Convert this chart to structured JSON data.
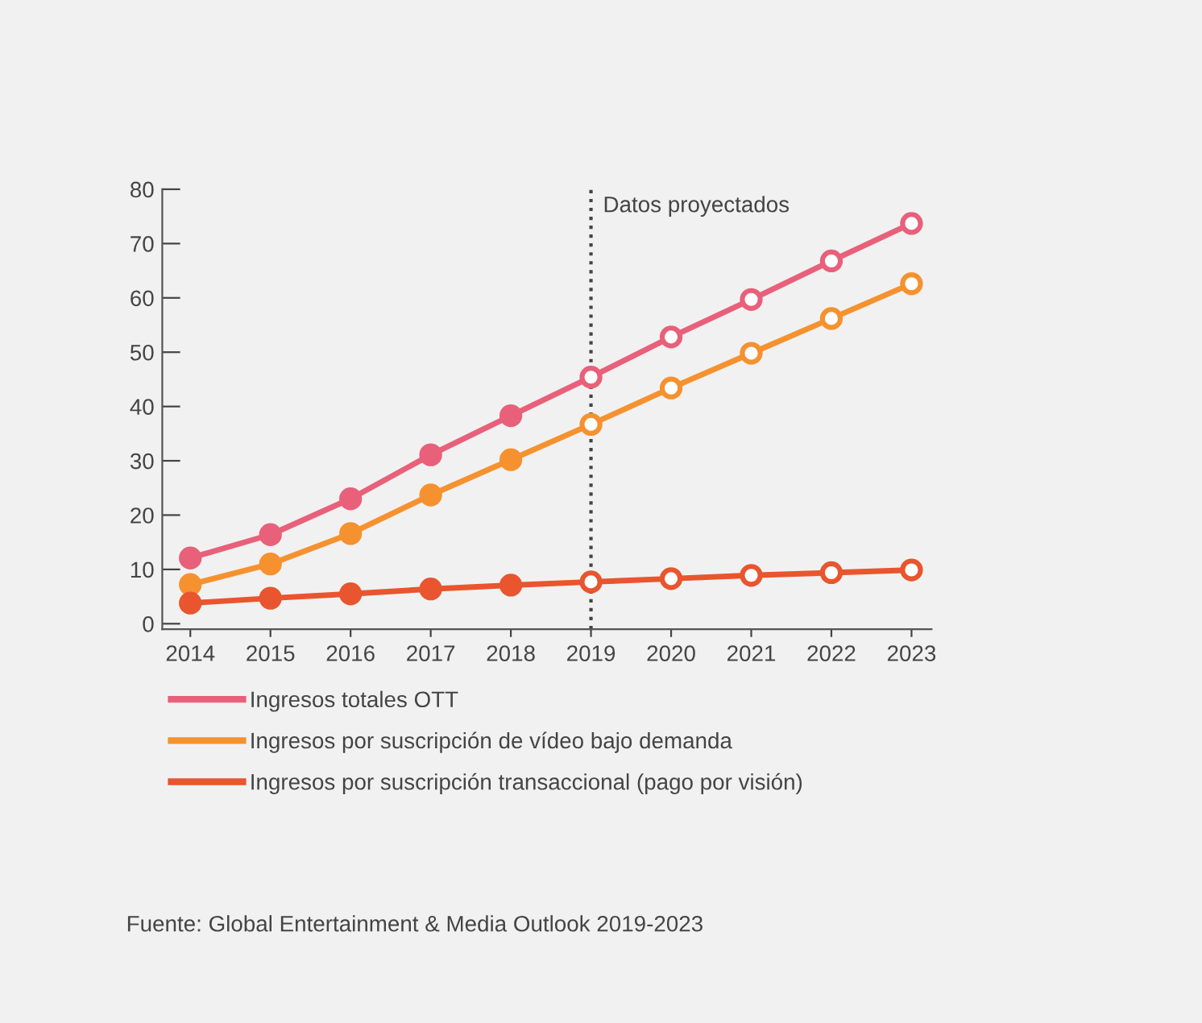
{
  "chart_data": {
    "type": "line",
    "categories": [
      "2014",
      "2015",
      "2016",
      "2017",
      "2018",
      "2019",
      "2020",
      "2021",
      "2022",
      "2023"
    ],
    "series": [
      {
        "name": "Ingresos totales OTT",
        "color": "#e8607a",
        "values": [
          12.1,
          16.4,
          23.0,
          31.1,
          38.3,
          45.4,
          52.8,
          59.7,
          66.8,
          73.7
        ]
      },
      {
        "name": "Ingresos por suscripción de vídeo bajo demanda",
        "color": "#f5922f",
        "values": [
          7.2,
          11.0,
          16.6,
          23.7,
          30.2,
          36.7,
          43.4,
          49.8,
          56.2,
          62.6
        ]
      },
      {
        "name": "Ingresos por suscripción transaccional (pago por visión)",
        "color": "#e8552e",
        "values": [
          3.8,
          4.7,
          5.5,
          6.4,
          7.1,
          7.7,
          8.3,
          8.9,
          9.4,
          9.9
        ]
      }
    ],
    "ylim": [
      -1,
      80
    ],
    "yticks": [
      0,
      10,
      20,
      30,
      40,
      50,
      60,
      70,
      80
    ],
    "ref_lines": [
      {
        "axis": "x",
        "value": "2019",
        "label": "Datos proyectados",
        "color": "#444444",
        "line_style": "dotted"
      }
    ],
    "marker": "circle",
    "line_style": "solid",
    "grid": false,
    "legend": "bottom",
    "annotations": [
      "Fuente: Global Entertainment & Media Outlook 2019-2023"
    ]
  }
}
